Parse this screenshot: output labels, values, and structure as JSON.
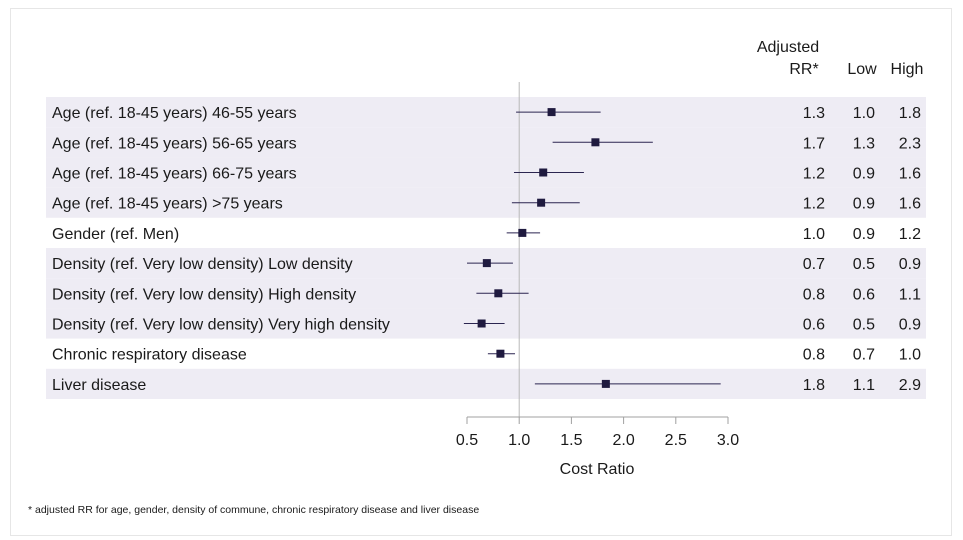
{
  "chart_data": {
    "type": "forest",
    "xlabel": "Cost Ratio",
    "xlim": [
      0.5,
      3.0
    ],
    "xticks": [
      "0.5",
      "1.0",
      "1.5",
      "2.0",
      "2.5",
      "3.0"
    ],
    "reference_line": 1.0,
    "columns": {
      "rr": [
        "Adjusted",
        "RR*"
      ],
      "low": "Low",
      "high": "High"
    },
    "rows": [
      {
        "label": "Age (ref. 18-45 years) 46-55 years",
        "rr": "1.3",
        "low": "1.0",
        "high": "1.8",
        "estimate": 1.31,
        "ci_low": 0.97,
        "ci_high": 1.78,
        "shaded": true
      },
      {
        "label": "Age (ref. 18-45 years) 56-65 years",
        "rr": "1.7",
        "low": "1.3",
        "high": "2.3",
        "estimate": 1.73,
        "ci_low": 1.32,
        "ci_high": 2.28,
        "shaded": true
      },
      {
        "label": "Age (ref. 18-45 years) 66-75 years",
        "rr": "1.2",
        "low": "0.9",
        "high": "1.6",
        "estimate": 1.23,
        "ci_low": 0.95,
        "ci_high": 1.62,
        "shaded": true
      },
      {
        "label": "Age (ref. 18-45 years) >75 years",
        "rr": "1.2",
        "low": "0.9",
        "high": "1.6",
        "estimate": 1.21,
        "ci_low": 0.93,
        "ci_high": 1.58,
        "shaded": true
      },
      {
        "label": "Gender (ref. Men)",
        "rr": "1.0",
        "low": "0.9",
        "high": "1.2",
        "estimate": 1.03,
        "ci_low": 0.88,
        "ci_high": 1.2,
        "shaded": false
      },
      {
        "label": "Density (ref. Very low density) Low density",
        "rr": "0.7",
        "low": "0.5",
        "high": "0.9",
        "estimate": 0.69,
        "ci_low": 0.5,
        "ci_high": 0.94,
        "shaded": true
      },
      {
        "label": "Density (ref. Very low density) High density",
        "rr": "0.8",
        "low": "0.6",
        "high": "1.1",
        "estimate": 0.8,
        "ci_low": 0.59,
        "ci_high": 1.09,
        "shaded": true
      },
      {
        "label": "Density (ref. Very low density) Very high density",
        "rr": "0.6",
        "low": "0.5",
        "high": "0.9",
        "estimate": 0.64,
        "ci_low": 0.47,
        "ci_high": 0.86,
        "shaded": true
      },
      {
        "label": "Chronic respiratory disease",
        "rr": "0.8",
        "low": "0.7",
        "high": "1.0",
        "estimate": 0.82,
        "ci_low": 0.7,
        "ci_high": 0.96,
        "shaded": false
      },
      {
        "label": "Liver disease",
        "rr": "1.8",
        "low": "1.1",
        "high": "2.9",
        "estimate": 1.83,
        "ci_low": 1.15,
        "ci_high": 2.93,
        "shaded": true
      }
    ],
    "footnote": "* adjusted RR for age, gender, density of commune, chronic respiratory disease and liver disease",
    "colors": {
      "shade": "#eeecf4",
      "marker": "#1f1a3f",
      "ci_line": "#2b2550",
      "ref_line": "#b8b8b8",
      "axis": "#a0a0a0"
    }
  }
}
